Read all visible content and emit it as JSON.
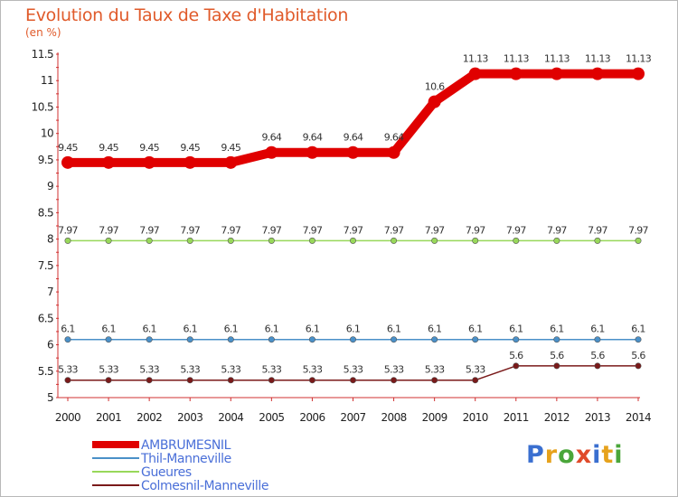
{
  "title": "Evolution du Taux de Taxe d'Habitation",
  "subtitle": "(en %)",
  "logo": {
    "text": "Proxiti",
    "colors": [
      "#3a6fd0",
      "#e6a21c",
      "#4aa63a",
      "#e04a2a",
      "#3a6fd0",
      "#e6a21c",
      "#4aa63a"
    ]
  },
  "chart_data": {
    "type": "line",
    "x": [
      2000,
      2001,
      2002,
      2003,
      2004,
      2005,
      2006,
      2007,
      2008,
      2009,
      2010,
      2011,
      2012,
      2013,
      2014
    ],
    "ylim": [
      5,
      11.5
    ],
    "yticks": [
      5,
      5.5,
      6,
      6.5,
      7,
      7.5,
      8,
      8.5,
      9,
      9.5,
      10,
      10.5,
      11,
      11.5
    ],
    "grid": false,
    "legend_position": "bottom-left",
    "series": [
      {
        "name": "AMBRUMESNIL",
        "color": "#e00000",
        "values": [
          9.45,
          9.45,
          9.45,
          9.45,
          9.45,
          9.64,
          9.64,
          9.64,
          9.64,
          10.6,
          11.13,
          11.13,
          11.13,
          11.13,
          11.13
        ],
        "labels": [
          "9.45",
          "9.45",
          "9.45",
          "9.45",
          "9.45",
          "9.64",
          "9.64",
          "9.64",
          "9.64",
          "10.6",
          "11.13",
          "11.13",
          "11.13",
          "11.13",
          "11.13"
        ]
      },
      {
        "name": "Thil-Manneville",
        "color": "#4a90c8",
        "values": [
          6.1,
          6.1,
          6.1,
          6.1,
          6.1,
          6.1,
          6.1,
          6.1,
          6.1,
          6.1,
          6.1,
          6.1,
          6.1,
          6.1,
          6.1
        ],
        "labels": [
          "6.1",
          "6.1",
          "6.1",
          "6.1",
          "6.1",
          "6.1",
          "6.1",
          "6.1",
          "6.1",
          "6.1",
          "6.1",
          "6.1",
          "6.1",
          "6.1",
          "6.1"
        ]
      },
      {
        "name": "Gueures",
        "color": "#98d85a",
        "values": [
          7.97,
          7.97,
          7.97,
          7.97,
          7.97,
          7.97,
          7.97,
          7.97,
          7.97,
          7.97,
          7.97,
          7.97,
          7.97,
          7.97,
          7.97
        ],
        "labels": [
          "7.97",
          "7.97",
          "7.97",
          "7.97",
          "7.97",
          "7.97",
          "7.97",
          "7.97",
          "7.97",
          "7.97",
          "7.97",
          "7.97",
          "7.97",
          "7.97",
          "7.97"
        ]
      },
      {
        "name": "Colmesnil-Manneville",
        "color": "#7a1a1a",
        "values": [
          5.33,
          5.33,
          5.33,
          5.33,
          5.33,
          5.33,
          5.33,
          5.33,
          5.33,
          5.33,
          5.33,
          5.6,
          5.6,
          5.6,
          5.6
        ],
        "labels": [
          "5.33",
          "5.33",
          "5.33",
          "5.33",
          "5.33",
          "5.33",
          "5.33",
          "5.33",
          "5.33",
          "5.33",
          "5.33",
          "5.6",
          "5.6",
          "5.6",
          "5.6"
        ]
      }
    ]
  }
}
